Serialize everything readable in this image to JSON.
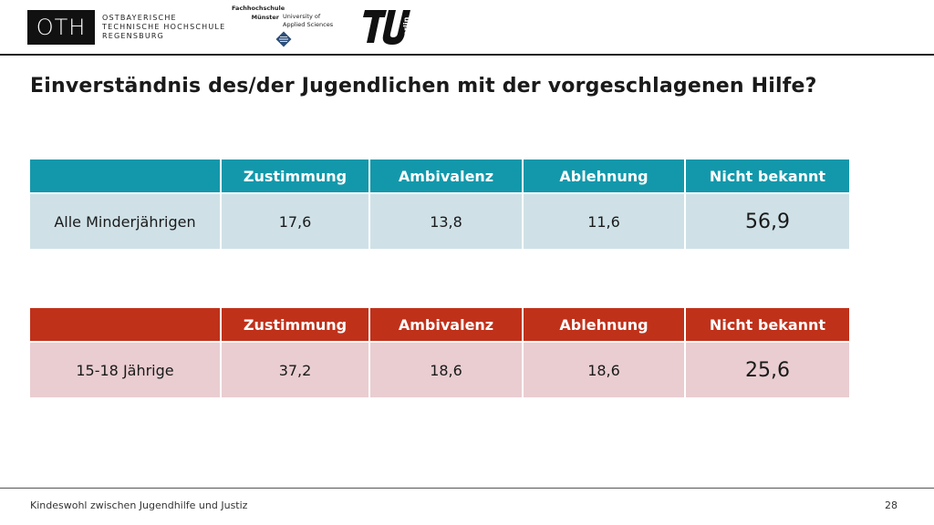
{
  "logos": {
    "oth": {
      "mark": "OTH",
      "lines": [
        "OSTBAYERISCHE",
        "TECHNISCHE HOCHSCHULE",
        "REGENSBURG"
      ]
    },
    "fh_muenster": {
      "name_lines": [
        "Fachhochschule",
        "Münster"
      ],
      "sub_lines": [
        "University of",
        "Applied Sciences"
      ]
    },
    "tu_berlin": {
      "mark": "TU",
      "sub": "berlin"
    }
  },
  "slide": {
    "title": "Einverständnis des/der Jugendlichen mit der vorgeschlagenen Hilfe?"
  },
  "tables": [
    {
      "headers": [
        "",
        "Zustimmung",
        "Ambivalenz",
        "Ablehnung",
        "Nicht bekannt"
      ],
      "row_label": "Alle Minderjährigen",
      "values": [
        "17,6",
        "13,8",
        "11,6",
        "56,9"
      ]
    },
    {
      "headers": [
        "",
        "Zustimmung",
        "Ambivalenz",
        "Ablehnung",
        "Nicht bekannt"
      ],
      "row_label": "15-18 Jährige",
      "values": [
        "37,2",
        "18,6",
        "18,6",
        "25,6"
      ]
    }
  ],
  "footer": {
    "text": "Kindeswohl zwischen Jugendhilfe und Justiz",
    "page": "28"
  },
  "colors": {
    "table1_header": "#1398ab",
    "table1_cell": "#cfe1e7",
    "table2_header": "#c0311a",
    "table2_cell": "#e9cdd1"
  }
}
